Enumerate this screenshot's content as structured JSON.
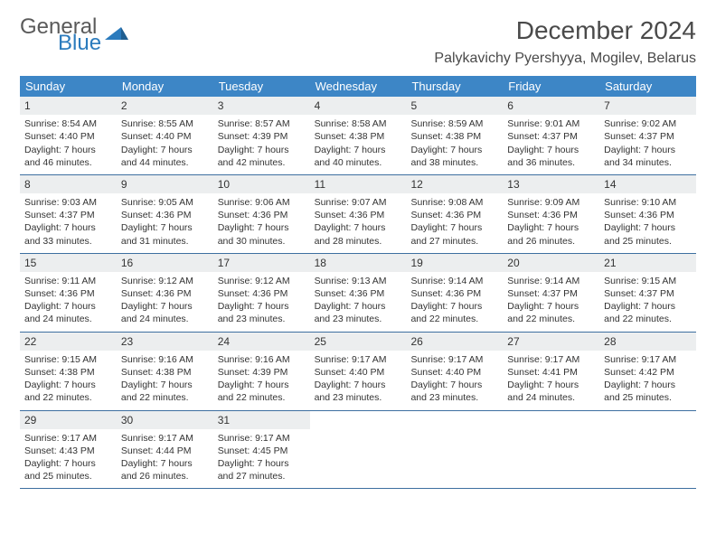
{
  "brand": {
    "part1": "General",
    "part2": "Blue"
  },
  "title": "December 2024",
  "location": "Palykavichy Pyershyya, Mogilev, Belarus",
  "colors": {
    "header_bg": "#3d86c6",
    "header_text": "#ffffff",
    "daynum_bg": "#eceeef",
    "week_border": "#3d6fa0",
    "body_text": "#333333",
    "brand_gray": "#5a5a5a",
    "brand_blue": "#2b7bbd"
  },
  "day_headers": [
    "Sunday",
    "Monday",
    "Tuesday",
    "Wednesday",
    "Thursday",
    "Friday",
    "Saturday"
  ],
  "weeks": [
    [
      {
        "n": "1",
        "sr": "Sunrise: 8:54 AM",
        "ss": "Sunset: 4:40 PM",
        "dl": "Daylight: 7 hours and 46 minutes."
      },
      {
        "n": "2",
        "sr": "Sunrise: 8:55 AM",
        "ss": "Sunset: 4:40 PM",
        "dl": "Daylight: 7 hours and 44 minutes."
      },
      {
        "n": "3",
        "sr": "Sunrise: 8:57 AM",
        "ss": "Sunset: 4:39 PM",
        "dl": "Daylight: 7 hours and 42 minutes."
      },
      {
        "n": "4",
        "sr": "Sunrise: 8:58 AM",
        "ss": "Sunset: 4:38 PM",
        "dl": "Daylight: 7 hours and 40 minutes."
      },
      {
        "n": "5",
        "sr": "Sunrise: 8:59 AM",
        "ss": "Sunset: 4:38 PM",
        "dl": "Daylight: 7 hours and 38 minutes."
      },
      {
        "n": "6",
        "sr": "Sunrise: 9:01 AM",
        "ss": "Sunset: 4:37 PM",
        "dl": "Daylight: 7 hours and 36 minutes."
      },
      {
        "n": "7",
        "sr": "Sunrise: 9:02 AM",
        "ss": "Sunset: 4:37 PM",
        "dl": "Daylight: 7 hours and 34 minutes."
      }
    ],
    [
      {
        "n": "8",
        "sr": "Sunrise: 9:03 AM",
        "ss": "Sunset: 4:37 PM",
        "dl": "Daylight: 7 hours and 33 minutes."
      },
      {
        "n": "9",
        "sr": "Sunrise: 9:05 AM",
        "ss": "Sunset: 4:36 PM",
        "dl": "Daylight: 7 hours and 31 minutes."
      },
      {
        "n": "10",
        "sr": "Sunrise: 9:06 AM",
        "ss": "Sunset: 4:36 PM",
        "dl": "Daylight: 7 hours and 30 minutes."
      },
      {
        "n": "11",
        "sr": "Sunrise: 9:07 AM",
        "ss": "Sunset: 4:36 PM",
        "dl": "Daylight: 7 hours and 28 minutes."
      },
      {
        "n": "12",
        "sr": "Sunrise: 9:08 AM",
        "ss": "Sunset: 4:36 PM",
        "dl": "Daylight: 7 hours and 27 minutes."
      },
      {
        "n": "13",
        "sr": "Sunrise: 9:09 AM",
        "ss": "Sunset: 4:36 PM",
        "dl": "Daylight: 7 hours and 26 minutes."
      },
      {
        "n": "14",
        "sr": "Sunrise: 9:10 AM",
        "ss": "Sunset: 4:36 PM",
        "dl": "Daylight: 7 hours and 25 minutes."
      }
    ],
    [
      {
        "n": "15",
        "sr": "Sunrise: 9:11 AM",
        "ss": "Sunset: 4:36 PM",
        "dl": "Daylight: 7 hours and 24 minutes."
      },
      {
        "n": "16",
        "sr": "Sunrise: 9:12 AM",
        "ss": "Sunset: 4:36 PM",
        "dl": "Daylight: 7 hours and 24 minutes."
      },
      {
        "n": "17",
        "sr": "Sunrise: 9:12 AM",
        "ss": "Sunset: 4:36 PM",
        "dl": "Daylight: 7 hours and 23 minutes."
      },
      {
        "n": "18",
        "sr": "Sunrise: 9:13 AM",
        "ss": "Sunset: 4:36 PM",
        "dl": "Daylight: 7 hours and 23 minutes."
      },
      {
        "n": "19",
        "sr": "Sunrise: 9:14 AM",
        "ss": "Sunset: 4:36 PM",
        "dl": "Daylight: 7 hours and 22 minutes."
      },
      {
        "n": "20",
        "sr": "Sunrise: 9:14 AM",
        "ss": "Sunset: 4:37 PM",
        "dl": "Daylight: 7 hours and 22 minutes."
      },
      {
        "n": "21",
        "sr": "Sunrise: 9:15 AM",
        "ss": "Sunset: 4:37 PM",
        "dl": "Daylight: 7 hours and 22 minutes."
      }
    ],
    [
      {
        "n": "22",
        "sr": "Sunrise: 9:15 AM",
        "ss": "Sunset: 4:38 PM",
        "dl": "Daylight: 7 hours and 22 minutes."
      },
      {
        "n": "23",
        "sr": "Sunrise: 9:16 AM",
        "ss": "Sunset: 4:38 PM",
        "dl": "Daylight: 7 hours and 22 minutes."
      },
      {
        "n": "24",
        "sr": "Sunrise: 9:16 AM",
        "ss": "Sunset: 4:39 PM",
        "dl": "Daylight: 7 hours and 22 minutes."
      },
      {
        "n": "25",
        "sr": "Sunrise: 9:17 AM",
        "ss": "Sunset: 4:40 PM",
        "dl": "Daylight: 7 hours and 23 minutes."
      },
      {
        "n": "26",
        "sr": "Sunrise: 9:17 AM",
        "ss": "Sunset: 4:40 PM",
        "dl": "Daylight: 7 hours and 23 minutes."
      },
      {
        "n": "27",
        "sr": "Sunrise: 9:17 AM",
        "ss": "Sunset: 4:41 PM",
        "dl": "Daylight: 7 hours and 24 minutes."
      },
      {
        "n": "28",
        "sr": "Sunrise: 9:17 AM",
        "ss": "Sunset: 4:42 PM",
        "dl": "Daylight: 7 hours and 25 minutes."
      }
    ],
    [
      {
        "n": "29",
        "sr": "Sunrise: 9:17 AM",
        "ss": "Sunset: 4:43 PM",
        "dl": "Daylight: 7 hours and 25 minutes."
      },
      {
        "n": "30",
        "sr": "Sunrise: 9:17 AM",
        "ss": "Sunset: 4:44 PM",
        "dl": "Daylight: 7 hours and 26 minutes."
      },
      {
        "n": "31",
        "sr": "Sunrise: 9:17 AM",
        "ss": "Sunset: 4:45 PM",
        "dl": "Daylight: 7 hours and 27 minutes."
      },
      null,
      null,
      null,
      null
    ]
  ]
}
